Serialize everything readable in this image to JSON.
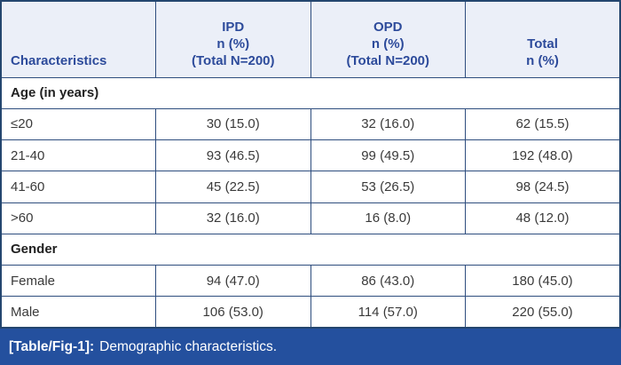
{
  "colors": {
    "header_bg": "#EBEFF8",
    "header_text": "#2D4B9B",
    "grid_border": "#2E4D7E",
    "outer_border": "#24466F",
    "caption_bg": "#24509E",
    "caption_text": "#FFFFFF",
    "body_text": "#3A3A3A",
    "section_text": "#222222"
  },
  "header": {
    "characteristics": "Characteristics",
    "ipd": {
      "l1": "IPD",
      "l2": "n (%)",
      "l3": "(Total N=200)"
    },
    "opd": {
      "l1": "OPD",
      "l2": "n (%)",
      "l3": "(Total N=200)"
    },
    "total": {
      "l1": "Total",
      "l2": "n (%)"
    }
  },
  "sections": [
    {
      "title": "Age (in years)",
      "rows": [
        {
          "label": "≤20",
          "ipd": "30 (15.0)",
          "opd": "32 (16.0)",
          "total": "62 (15.5)"
        },
        {
          "label": "21-40",
          "ipd": "93 (46.5)",
          "opd": "99 (49.5)",
          "total": "192 (48.0)"
        },
        {
          "label": "41-60",
          "ipd": "45 (22.5)",
          "opd": "53 (26.5)",
          "total": "98 (24.5)"
        },
        {
          "label": ">60",
          "ipd": "32 (16.0)",
          "opd": "16 (8.0)",
          "total": "48 (12.0)"
        }
      ]
    },
    {
      "title": "Gender",
      "rows": [
        {
          "label": "Female",
          "ipd": "94 (47.0)",
          "opd": "86 (43.0)",
          "total": "180 (45.0)"
        },
        {
          "label": "Male",
          "ipd": "106 (53.0)",
          "opd": "114 (57.0)",
          "total": "220 (55.0)"
        }
      ]
    }
  ],
  "caption": {
    "tag": "[Table/Fig-1]:",
    "text": "Demographic characteristics."
  }
}
